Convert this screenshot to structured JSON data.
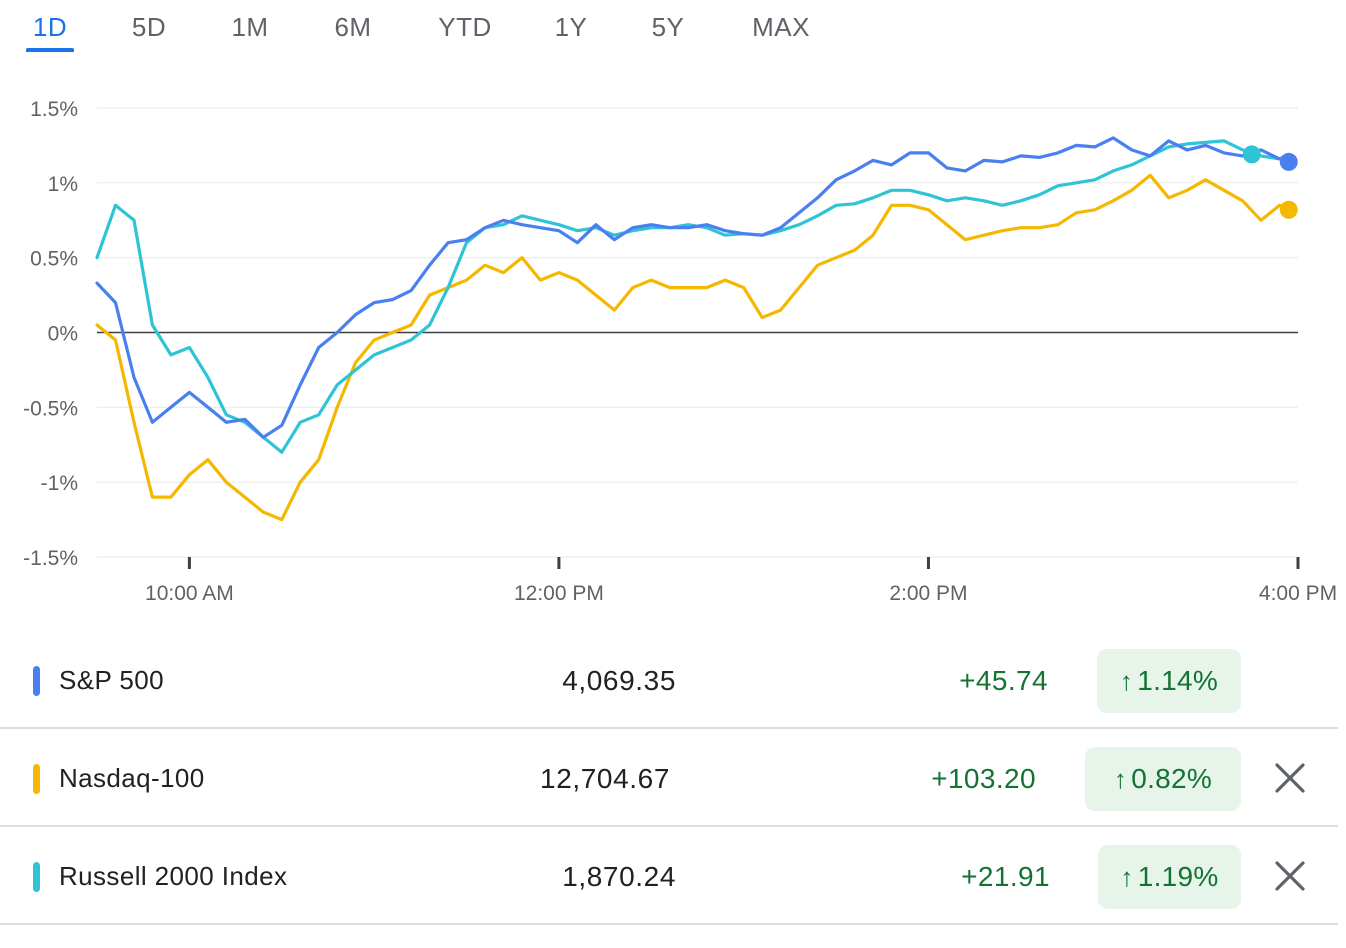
{
  "tabs": [
    "1D",
    "5D",
    "1M",
    "6M",
    "YTD",
    "1Y",
    "5Y",
    "MAX"
  ],
  "active_tab": "1D",
  "colors": {
    "sp500": "#4a7ff0",
    "nasdaq": "#f5b800",
    "russell": "#2ec4d6",
    "positive": "#137333",
    "positive_bg": "#e6f4ea",
    "accent": "#1a73e8"
  },
  "chart_data": {
    "type": "line",
    "title": "",
    "xlabel": "",
    "ylabel": "",
    "ylim": [
      -1.5,
      1.5
    ],
    "y_ticks": [
      "1.5%",
      "1%",
      "0.5%",
      "0%",
      "-0.5%",
      "-1%",
      "-1.5%"
    ],
    "y_tick_values": [
      1.5,
      1,
      0.5,
      0,
      -0.5,
      -1,
      -1.5
    ],
    "x_ticks": [
      "10:00 AM",
      "12:00 PM",
      "2:00 PM",
      "4:00 PM"
    ],
    "x_tick_values": [
      10,
      12,
      14,
      16
    ],
    "xlim": [
      9.5,
      16
    ],
    "baseline": 0,
    "grid": true,
    "series": [
      {
        "name": "S&P 500",
        "x": [
          9.5,
          9.6,
          9.7,
          9.8,
          9.9,
          10.0,
          10.1,
          10.2,
          10.3,
          10.4,
          10.5,
          10.6,
          10.7,
          10.8,
          10.9,
          11.0,
          11.1,
          11.2,
          11.3,
          11.4,
          11.5,
          11.6,
          11.7,
          11.8,
          11.9,
          12.0,
          12.1,
          12.2,
          12.3,
          12.4,
          12.5,
          12.6,
          12.7,
          12.8,
          12.9,
          13.0,
          13.1,
          13.2,
          13.3,
          13.4,
          13.5,
          13.6,
          13.7,
          13.8,
          13.9,
          14.0,
          14.1,
          14.2,
          14.3,
          14.4,
          14.5,
          14.6,
          14.7,
          14.8,
          14.9,
          15.0,
          15.1,
          15.2,
          15.3,
          15.4,
          15.5,
          15.6,
          15.7,
          15.8,
          15.9,
          15.95
        ],
        "values": [
          0.33,
          0.2,
          -0.3,
          -0.6,
          -0.5,
          -0.4,
          -0.5,
          -0.6,
          -0.58,
          -0.7,
          -0.62,
          -0.35,
          -0.1,
          0.0,
          0.12,
          0.2,
          0.22,
          0.28,
          0.45,
          0.6,
          0.62,
          0.7,
          0.75,
          0.72,
          0.7,
          0.68,
          0.6,
          0.72,
          0.62,
          0.7,
          0.72,
          0.7,
          0.7,
          0.72,
          0.68,
          0.66,
          0.65,
          0.7,
          0.8,
          0.9,
          1.02,
          1.08,
          1.15,
          1.12,
          1.2,
          1.2,
          1.1,
          1.08,
          1.15,
          1.14,
          1.18,
          1.17,
          1.2,
          1.25,
          1.24,
          1.3,
          1.22,
          1.18,
          1.28,
          1.22,
          1.25,
          1.2,
          1.18,
          1.22,
          1.16,
          1.14
        ]
      },
      {
        "name": "Nasdaq-100",
        "x": [
          9.5,
          9.6,
          9.7,
          9.8,
          9.9,
          10.0,
          10.1,
          10.2,
          10.3,
          10.4,
          10.5,
          10.6,
          10.7,
          10.8,
          10.9,
          11.0,
          11.1,
          11.2,
          11.3,
          11.4,
          11.5,
          11.6,
          11.7,
          11.8,
          11.9,
          12.0,
          12.1,
          12.2,
          12.3,
          12.4,
          12.5,
          12.6,
          12.7,
          12.8,
          12.9,
          13.0,
          13.1,
          13.2,
          13.3,
          13.4,
          13.5,
          13.6,
          13.7,
          13.8,
          13.9,
          14.0,
          14.1,
          14.2,
          14.3,
          14.4,
          14.5,
          14.6,
          14.7,
          14.8,
          14.9,
          15.0,
          15.1,
          15.2,
          15.3,
          15.4,
          15.5,
          15.6,
          15.7,
          15.8,
          15.9,
          15.95
        ],
        "values": [
          0.05,
          -0.05,
          -0.6,
          -1.1,
          -1.1,
          -0.95,
          -0.85,
          -1.0,
          -1.1,
          -1.2,
          -1.25,
          -1.0,
          -0.85,
          -0.5,
          -0.2,
          -0.05,
          0.0,
          0.05,
          0.25,
          0.3,
          0.35,
          0.45,
          0.4,
          0.5,
          0.35,
          0.4,
          0.35,
          0.25,
          0.15,
          0.3,
          0.35,
          0.3,
          0.3,
          0.3,
          0.35,
          0.3,
          0.1,
          0.15,
          0.3,
          0.45,
          0.5,
          0.55,
          0.65,
          0.85,
          0.85,
          0.82,
          0.72,
          0.62,
          0.65,
          0.68,
          0.7,
          0.7,
          0.72,
          0.8,
          0.82,
          0.88,
          0.95,
          1.05,
          0.9,
          0.95,
          1.02,
          0.95,
          0.88,
          0.75,
          0.85,
          0.82
        ]
      },
      {
        "name": "Russell 2000 Index",
        "x": [
          9.5,
          9.6,
          9.7,
          9.8,
          9.9,
          10.0,
          10.1,
          10.2,
          10.3,
          10.4,
          10.5,
          10.6,
          10.7,
          10.8,
          10.9,
          11.0,
          11.1,
          11.2,
          11.3,
          11.4,
          11.5,
          11.6,
          11.7,
          11.8,
          11.9,
          12.0,
          12.1,
          12.2,
          12.3,
          12.4,
          12.5,
          12.6,
          12.7,
          12.8,
          12.9,
          13.0,
          13.1,
          13.2,
          13.3,
          13.4,
          13.5,
          13.6,
          13.7,
          13.8,
          13.9,
          14.0,
          14.1,
          14.2,
          14.3,
          14.4,
          14.5,
          14.6,
          14.7,
          14.8,
          14.9,
          15.0,
          15.1,
          15.2,
          15.3,
          15.4,
          15.5,
          15.6,
          15.7,
          15.8,
          15.9,
          15.95
        ],
        "values": [
          0.5,
          0.85,
          0.75,
          0.05,
          -0.15,
          -0.1,
          -0.3,
          -0.55,
          -0.6,
          -0.7,
          -0.8,
          -0.6,
          -0.55,
          -0.35,
          -0.25,
          -0.15,
          -0.1,
          -0.05,
          0.05,
          0.3,
          0.6,
          0.7,
          0.72,
          0.78,
          0.75,
          0.72,
          0.68,
          0.7,
          0.65,
          0.68,
          0.7,
          0.7,
          0.72,
          0.7,
          0.65,
          0.66,
          0.65,
          0.68,
          0.72,
          0.78,
          0.85,
          0.86,
          0.9,
          0.95,
          0.95,
          0.92,
          0.88,
          0.9,
          0.88,
          0.85,
          0.88,
          0.92,
          0.98,
          1.0,
          1.02,
          1.08,
          1.12,
          1.18,
          1.24,
          1.26,
          1.27,
          1.28,
          1.22,
          1.18,
          1.16,
          1.19
        ]
      }
    ],
    "legend": "none"
  },
  "rows": [
    {
      "name": "S&P 500",
      "price": "4,069.35",
      "change": "+45.74",
      "pct": "1.14%",
      "arrow": "↑",
      "removable": false
    },
    {
      "name": "Nasdaq-100",
      "price": "12,704.67",
      "change": "+103.20",
      "pct": "0.82%",
      "arrow": "↑",
      "removable": true
    },
    {
      "name": "Russell 2000 Index",
      "price": "1,870.24",
      "change": "+21.91",
      "pct": "1.19%",
      "arrow": "↑",
      "removable": true
    }
  ]
}
